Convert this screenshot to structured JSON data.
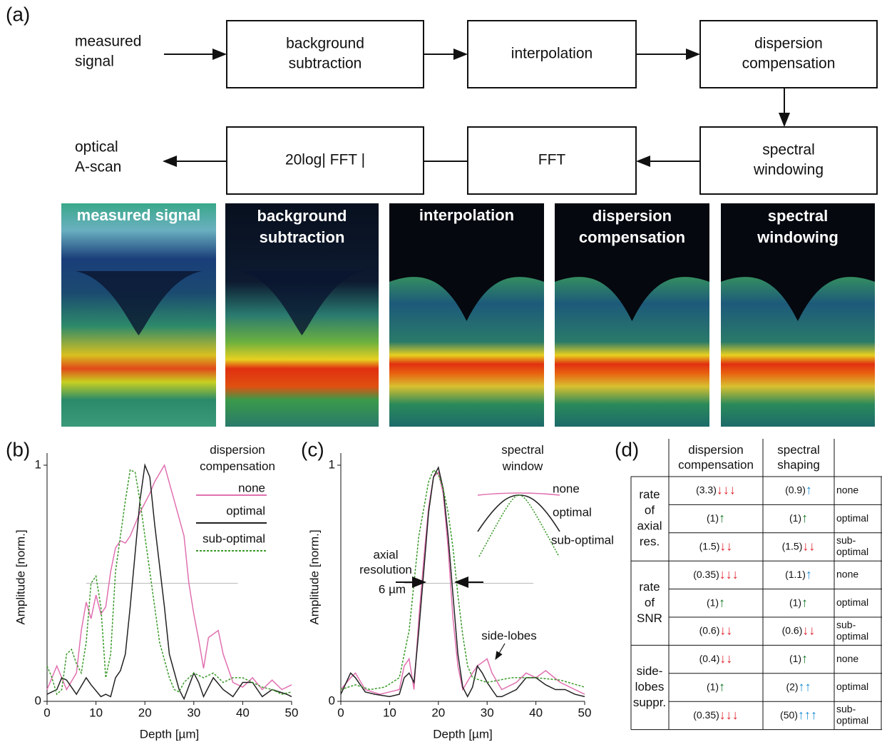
{
  "panels": [
    "(a)",
    "(b)",
    "(c)",
    "(d)"
  ],
  "flowchart": {
    "nodes": [
      {
        "label": [
          "measured",
          "signal"
        ]
      },
      {
        "label": [
          "background",
          "subtraction"
        ]
      },
      {
        "label": [
          "interpolation"
        ]
      },
      {
        "label": [
          "dispersion",
          "compensation"
        ]
      },
      {
        "label": [
          "spectral",
          "windowing"
        ]
      },
      {
        "label": [
          "FFT"
        ]
      },
      {
        "label": [
          "20log| FFT |"
        ]
      },
      {
        "label": [
          "optical",
          "A-scan"
        ]
      }
    ]
  },
  "oct_images": [
    {
      "label": [
        "measured signal"
      ]
    },
    {
      "label": [
        "background",
        "subtraction"
      ]
    },
    {
      "label": [
        "interpolation"
      ]
    },
    {
      "label": [
        "dispersion",
        "compensation"
      ]
    },
    {
      "label": [
        "spectral",
        "windowing"
      ]
    }
  ],
  "chart_data": [
    {
      "type": "line",
      "x_label": "Depth [µm]",
      "y_label": "Amplitude [norm.]",
      "legend_title": [
        "dispersion",
        "compensation"
      ],
      "xlim": [
        0,
        50
      ],
      "ylim": [
        0,
        1
      ],
      "xticks": [
        0,
        10,
        20,
        30,
        40,
        50
      ],
      "yticks": [
        0,
        1
      ],
      "hline": {
        "y": 0.5,
        "x": [
          8,
          39
        ]
      },
      "series": [
        {
          "name": "none",
          "color": "#e070b0",
          "style": "solid",
          "x": [
            0,
            2,
            4,
            6,
            7,
            8,
            9,
            10,
            11,
            12,
            13,
            14,
            15,
            16,
            17,
            19,
            21,
            22,
            24,
            26,
            28,
            29,
            30,
            31,
            32,
            33,
            35,
            36,
            38,
            40,
            42,
            44,
            46,
            48,
            50
          ],
          "values": [
            0.05,
            0.15,
            0.05,
            0.12,
            0.3,
            0.42,
            0.35,
            0.45,
            0.37,
            0.4,
            0.55,
            0.65,
            0.68,
            0.67,
            0.7,
            0.8,
            0.88,
            0.93,
            1.0,
            0.85,
            0.7,
            0.5,
            0.37,
            0.26,
            0.14,
            0.27,
            0.3,
            0.2,
            0.08,
            0.06,
            0.1,
            0.05,
            0.09,
            0.05,
            0.07
          ]
        },
        {
          "name": "optimal",
          "color": "#222222",
          "style": "solid",
          "x": [
            0,
            2,
            3,
            4,
            6,
            8,
            9,
            11,
            12,
            13,
            14,
            15,
            16,
            17,
            19,
            20,
            21,
            22,
            24,
            25,
            27,
            28,
            30,
            31,
            32,
            34,
            36,
            38,
            40,
            42,
            44,
            46,
            49,
            50
          ],
          "values": [
            0.03,
            0.05,
            0.1,
            0.09,
            0.03,
            0.1,
            0.07,
            0.02,
            0.03,
            0.02,
            0.1,
            0.13,
            0.2,
            0.4,
            0.85,
            1.0,
            0.95,
            0.75,
            0.4,
            0.2,
            0.05,
            0.01,
            0.12,
            0.08,
            0.02,
            0.1,
            0.05,
            0.02,
            0.08,
            0.08,
            0.02,
            0.05,
            0.03,
            0.02
          ]
        },
        {
          "name": "sub-optimal",
          "color": "#3a9a2a",
          "style": "dotted",
          "x": [
            0,
            1,
            2,
            3,
            4,
            5,
            6,
            7,
            8,
            9,
            10,
            11,
            12,
            13,
            14,
            15,
            16,
            17,
            18,
            19,
            20,
            21,
            23,
            25,
            26,
            27,
            28,
            30,
            32,
            34,
            36,
            38,
            40,
            42,
            44,
            46,
            48,
            50
          ],
          "values": [
            0.15,
            0.1,
            0.03,
            0.05,
            0.2,
            0.22,
            0.16,
            0.12,
            0.25,
            0.5,
            0.53,
            0.4,
            0.1,
            0.2,
            0.55,
            0.7,
            0.85,
            0.98,
            0.97,
            0.85,
            0.7,
            0.55,
            0.25,
            0.1,
            0.05,
            0.04,
            0.08,
            0.12,
            0.1,
            0.12,
            0.08,
            0.1,
            0.1,
            0.08,
            0.06,
            0.05,
            0.03,
            0.04
          ]
        }
      ]
    },
    {
      "type": "line",
      "x_label": "Depth [µm]",
      "y_label": "Amplitude [norm.]",
      "legend_title": [
        "spectral",
        "window"
      ],
      "xlim": [
        0,
        50
      ],
      "ylim": [
        0,
        1
      ],
      "xticks": [
        0,
        10,
        20,
        30,
        40,
        50
      ],
      "yticks": [
        0,
        1
      ],
      "hline": {
        "y": 0.5,
        "x": [
          13,
          39.5
        ]
      },
      "annotations": {
        "axial_resolution": [
          "axial",
          "resolution"
        ],
        "resolution_value": "6 µm",
        "side_lobes": "side-lobes"
      },
      "series": [
        {
          "name": "none",
          "color": "#e070b0",
          "style": "solid",
          "x": [
            0,
            2,
            3,
            5,
            8,
            10,
            12,
            13,
            14,
            15,
            16,
            17,
            18,
            19,
            20,
            21,
            22,
            23,
            24,
            25,
            27,
            28,
            30,
            31,
            33,
            36,
            38,
            40,
            42,
            45,
            48,
            50
          ],
          "values": [
            0.05,
            0.1,
            0.12,
            0.05,
            0.03,
            0.04,
            0.05,
            0.15,
            0.18,
            0.05,
            0.35,
            0.6,
            0.82,
            0.95,
            0.97,
            0.88,
            0.65,
            0.35,
            0.15,
            0.05,
            0.12,
            0.15,
            0.18,
            0.12,
            0.05,
            0.08,
            0.12,
            0.1,
            0.13,
            0.08,
            0.05,
            0.03
          ]
        },
        {
          "name": "optimal",
          "color": "#222222",
          "style": "solid",
          "x": [
            0,
            2,
            3,
            5,
            7,
            10,
            12,
            13,
            14,
            15,
            16,
            17,
            18,
            19,
            20,
            21,
            22,
            23,
            24,
            25,
            26,
            27,
            28,
            29,
            30,
            31,
            32,
            33,
            36,
            38,
            40,
            42,
            44,
            46,
            48,
            50
          ],
          "values": [
            0.03,
            0.12,
            0.1,
            0.04,
            0.03,
            0.02,
            0.03,
            0.1,
            0.12,
            0.08,
            0.3,
            0.55,
            0.8,
            0.95,
            0.99,
            0.9,
            0.7,
            0.45,
            0.2,
            0.06,
            0.02,
            0.06,
            0.15,
            0.12,
            0.08,
            0.05,
            0.02,
            0.02,
            0.05,
            0.1,
            0.1,
            0.07,
            0.05,
            0.05,
            0.03,
            0.02
          ]
        },
        {
          "name": "sub-optimal",
          "color": "#3a9a2a",
          "style": "dotted",
          "x": [
            0,
            3,
            6,
            9,
            12,
            14,
            15,
            16,
            18,
            19,
            20,
            21,
            22,
            23,
            24,
            25,
            26,
            27,
            30,
            35,
            40,
            45,
            50
          ],
          "values": [
            0.05,
            0.07,
            0.05,
            0.06,
            0.1,
            0.3,
            0.5,
            0.7,
            0.93,
            0.98,
            0.96,
            0.9,
            0.8,
            0.65,
            0.45,
            0.28,
            0.15,
            0.1,
            0.08,
            0.1,
            0.1,
            0.09,
            0.06
          ]
        }
      ]
    }
  ],
  "table": {
    "header": [
      [
        "dispersion",
        "compensation"
      ],
      [
        "spectral",
        "shaping"
      ]
    ],
    "groups": [
      {
        "label": [
          "rate",
          "of",
          "axial",
          "res."
        ]
      },
      {
        "label": [
          "rate",
          "of",
          "SNR"
        ]
      },
      {
        "label": [
          "side-",
          "lobes",
          "suppr."
        ]
      }
    ],
    "rows": [
      {
        "cells": [
          {
            "value": "(3.3)",
            "arrows": "↓↓↓",
            "color": "#e0202a"
          },
          {
            "value": "(0.9)",
            "arrows": "↑",
            "color": "#1e8fd6"
          }
        ],
        "label": [
          "none"
        ]
      },
      {
        "cells": [
          {
            "value": "(1)",
            "arrows": "↑",
            "color": "#1a7a2a"
          },
          {
            "value": "(1)",
            "arrows": "↑",
            "color": "#1a7a2a"
          }
        ],
        "label": [
          "optimal"
        ]
      },
      {
        "cells": [
          {
            "value": "(1.5)",
            "arrows": "↓↓",
            "color": "#e0202a"
          },
          {
            "value": "(1.5)",
            "arrows": "↓↓",
            "color": "#e0202a"
          }
        ],
        "label": [
          "sub-",
          "optimal"
        ]
      },
      {
        "cells": [
          {
            "value": "(0.35)",
            "arrows": "↓↓↓",
            "color": "#e0202a"
          },
          {
            "value": "(1.1)",
            "arrows": "↑",
            "color": "#1e8fd6"
          }
        ],
        "label": [
          "none"
        ]
      },
      {
        "cells": [
          {
            "value": "(1)",
            "arrows": "↑",
            "color": "#1a7a2a"
          },
          {
            "value": "(1)",
            "arrows": "↑",
            "color": "#1a7a2a"
          }
        ],
        "label": [
          "optimal"
        ]
      },
      {
        "cells": [
          {
            "value": "(0.6)",
            "arrows": "↓↓",
            "color": "#e0202a"
          },
          {
            "value": "(0.6)",
            "arrows": "↓↓",
            "color": "#e0202a"
          }
        ],
        "label": [
          "sub-",
          "optimal"
        ]
      },
      {
        "cells": [
          {
            "value": "(0.4)",
            "arrows": "↓↓",
            "color": "#e0202a"
          },
          {
            "value": "(1)",
            "arrows": "↑",
            "color": "#1a7a2a"
          }
        ],
        "label": [
          "none"
        ]
      },
      {
        "cells": [
          {
            "value": "(1)",
            "arrows": "↑",
            "color": "#1a7a2a"
          },
          {
            "value": "(2)",
            "arrows": "↑↑",
            "color": "#1e8fd6"
          }
        ],
        "label": [
          "optimal"
        ]
      },
      {
        "cells": [
          {
            "value": "(0.35)",
            "arrows": "↓↓↓",
            "color": "#e0202a"
          },
          {
            "value": "(50)",
            "arrows": "↑↑↑",
            "color": "#1e8fd6"
          }
        ],
        "label": [
          "sub-",
          "optimal"
        ]
      }
    ]
  }
}
